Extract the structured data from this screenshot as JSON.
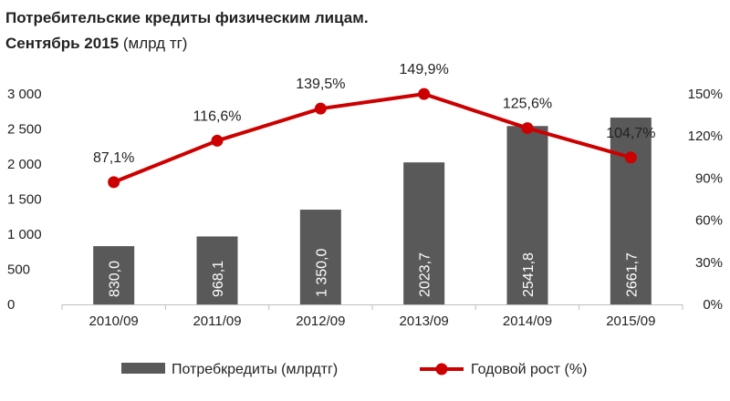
{
  "title": {
    "line1": "Потребительские  кредиты физическим  лицам.",
    "line2_bold": "Сентябрь 2015",
    "line2_unit": " (млрд тг)"
  },
  "colors": {
    "bars": "#595959",
    "line": "#cc0000"
  },
  "chart_data": {
    "type": "bar",
    "categories": [
      "2010/09",
      "2011/09",
      "2012/09",
      "2013/09",
      "2014/09",
      "2015/09"
    ],
    "series": [
      {
        "name": "Потребкредиты (млрдтг)",
        "type": "bar",
        "axis": "left",
        "values": [
          830.0,
          968.1,
          1350.0,
          2023.7,
          2541.8,
          2661.7
        ],
        "labels": [
          "830,0",
          "968,1",
          "1 350,0",
          "2023,7",
          "2541,8",
          "2661,7"
        ]
      },
      {
        "name": "Годовой рост (%)",
        "type": "line",
        "axis": "right",
        "values": [
          87.1,
          116.6,
          139.5,
          149.9,
          125.6,
          104.7
        ],
        "labels": [
          "87,1%",
          "116,6%",
          "139,5%",
          "149,9%",
          "125,6%",
          "104,7%"
        ]
      }
    ],
    "y_left": {
      "lim": [
        0,
        3000
      ],
      "ticks": [
        0,
        500,
        1000,
        1500,
        2000,
        2500,
        3000
      ],
      "tick_labels": [
        "0",
        "500",
        "1 000",
        "1 500",
        "2 000",
        "2 500",
        "3 000"
      ]
    },
    "y_right": {
      "lim": [
        0,
        150
      ],
      "ticks": [
        0,
        30,
        60,
        90,
        120,
        150
      ],
      "tick_labels": [
        "0%",
        "30%",
        "60%",
        "90%",
        "120%",
        "150%"
      ]
    },
    "grid": false,
    "legend": "bottom"
  }
}
